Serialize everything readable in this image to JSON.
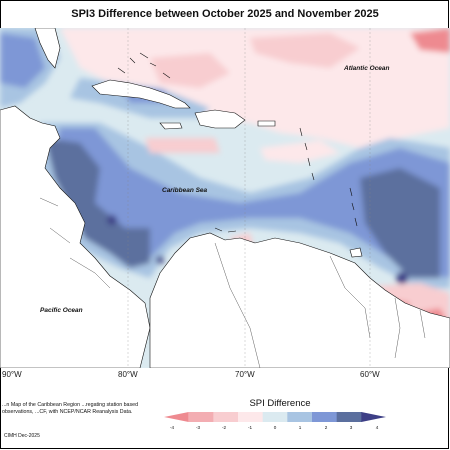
{
  "title": "SPI3 Difference between October 2025 and November 2025",
  "map_labels": {
    "atlantic": "Atlantic Ocean",
    "caribbean": "Caribbean Sea",
    "pacific": "Pacific Ocean"
  },
  "longitude_labels": [
    "90°W",
    "80°W",
    "70°W",
    "60°W"
  ],
  "footnote": "...n Map of the Caribbean Region ...regating station based observations, ...CF, with NCEP/NCAR Reanalysis Data.",
  "copyright": "CIMH Dec-2025",
  "legend": {
    "title": "SPI Difference",
    "ticks": [
      "-4",
      "-3",
      "-2",
      "-1",
      "0",
      "1",
      "2",
      "3",
      "4"
    ],
    "colors": [
      "#ee8a90",
      "#f3adb2",
      "#f8cdd0",
      "#fde8ea",
      "#dbeaf0",
      "#a8c4e2",
      "#7e97d6",
      "#5b6f9e",
      "#3d3f86"
    ]
  },
  "colors": {
    "land": "#ffffff",
    "coast": "#111111",
    "ocean_light": "#dbeaf0",
    "pink_light": "#fde8ea",
    "pink": "#f8cdd0",
    "blue": "#7e97d6",
    "blue_dark": "#5b6f9e",
    "navy": "#3d3f86"
  }
}
